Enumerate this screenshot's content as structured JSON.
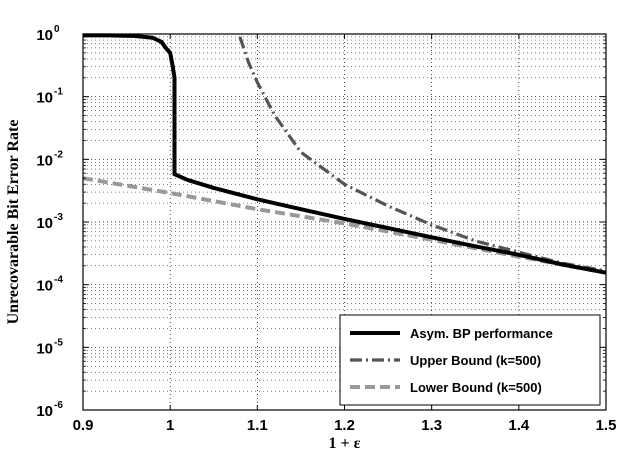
{
  "chart_data": {
    "type": "line",
    "xlabel": "1 + ε",
    "ylabel": "Unrecovarable Bit Error Rate",
    "xlim": [
      0.9,
      1.5
    ],
    "ylim": [
      1e-06,
      1
    ],
    "yscale": "log",
    "grid": true,
    "legend_position": "bottom-right",
    "x_ticks": [
      "0.9",
      "1",
      "1.1",
      "1.2",
      "1.3",
      "1.4",
      "1.5"
    ],
    "y_ticks": [
      {
        "base": "10",
        "exp": "0"
      },
      {
        "base": "10",
        "exp": "-1"
      },
      {
        "base": "10",
        "exp": "-2"
      },
      {
        "base": "10",
        "exp": "-3"
      },
      {
        "base": "10",
        "exp": "-4"
      },
      {
        "base": "10",
        "exp": "-5"
      },
      {
        "base": "10",
        "exp": "-6"
      }
    ],
    "series": [
      {
        "name": "Asym. BP performance",
        "color": "#000000",
        "style": "solid",
        "x": [
          0.9,
          0.93,
          0.96,
          0.98,
          0.99,
          0.995,
          1.0,
          1.003,
          1.005,
          1.005,
          1.02,
          1.05,
          1.1,
          1.15,
          1.2,
          1.25,
          1.3,
          1.35,
          1.4,
          1.45,
          1.5
        ],
        "y": [
          0.95,
          0.95,
          0.93,
          0.87,
          0.75,
          0.6,
          0.5,
          0.3,
          0.2,
          0.0058,
          0.0047,
          0.0035,
          0.0023,
          0.0016,
          0.00112,
          0.0008,
          0.00057,
          0.00041,
          0.0003,
          0.00021,
          0.000155
        ]
      },
      {
        "name": "Upper Bound (k=500)",
        "color": "#555555",
        "style": "dashdot",
        "x": [
          1.08,
          1.09,
          1.1,
          1.12,
          1.15,
          1.2,
          1.25,
          1.3,
          1.35,
          1.4,
          1.45,
          1.5
        ],
        "y": [
          0.9,
          0.35,
          0.17,
          0.05,
          0.013,
          0.004,
          0.0018,
          0.0009,
          0.0005,
          0.00033,
          0.00022,
          0.000165
        ]
      },
      {
        "name": "Lower Bound (k=500)",
        "color": "#999999",
        "style": "dashed",
        "x": [
          0.9,
          1.0,
          1.1,
          1.2,
          1.3,
          1.4,
          1.5
        ],
        "y": [
          0.005,
          0.0029,
          0.0016,
          0.00095,
          0.00052,
          0.00028,
          0.000155
        ]
      }
    ]
  }
}
